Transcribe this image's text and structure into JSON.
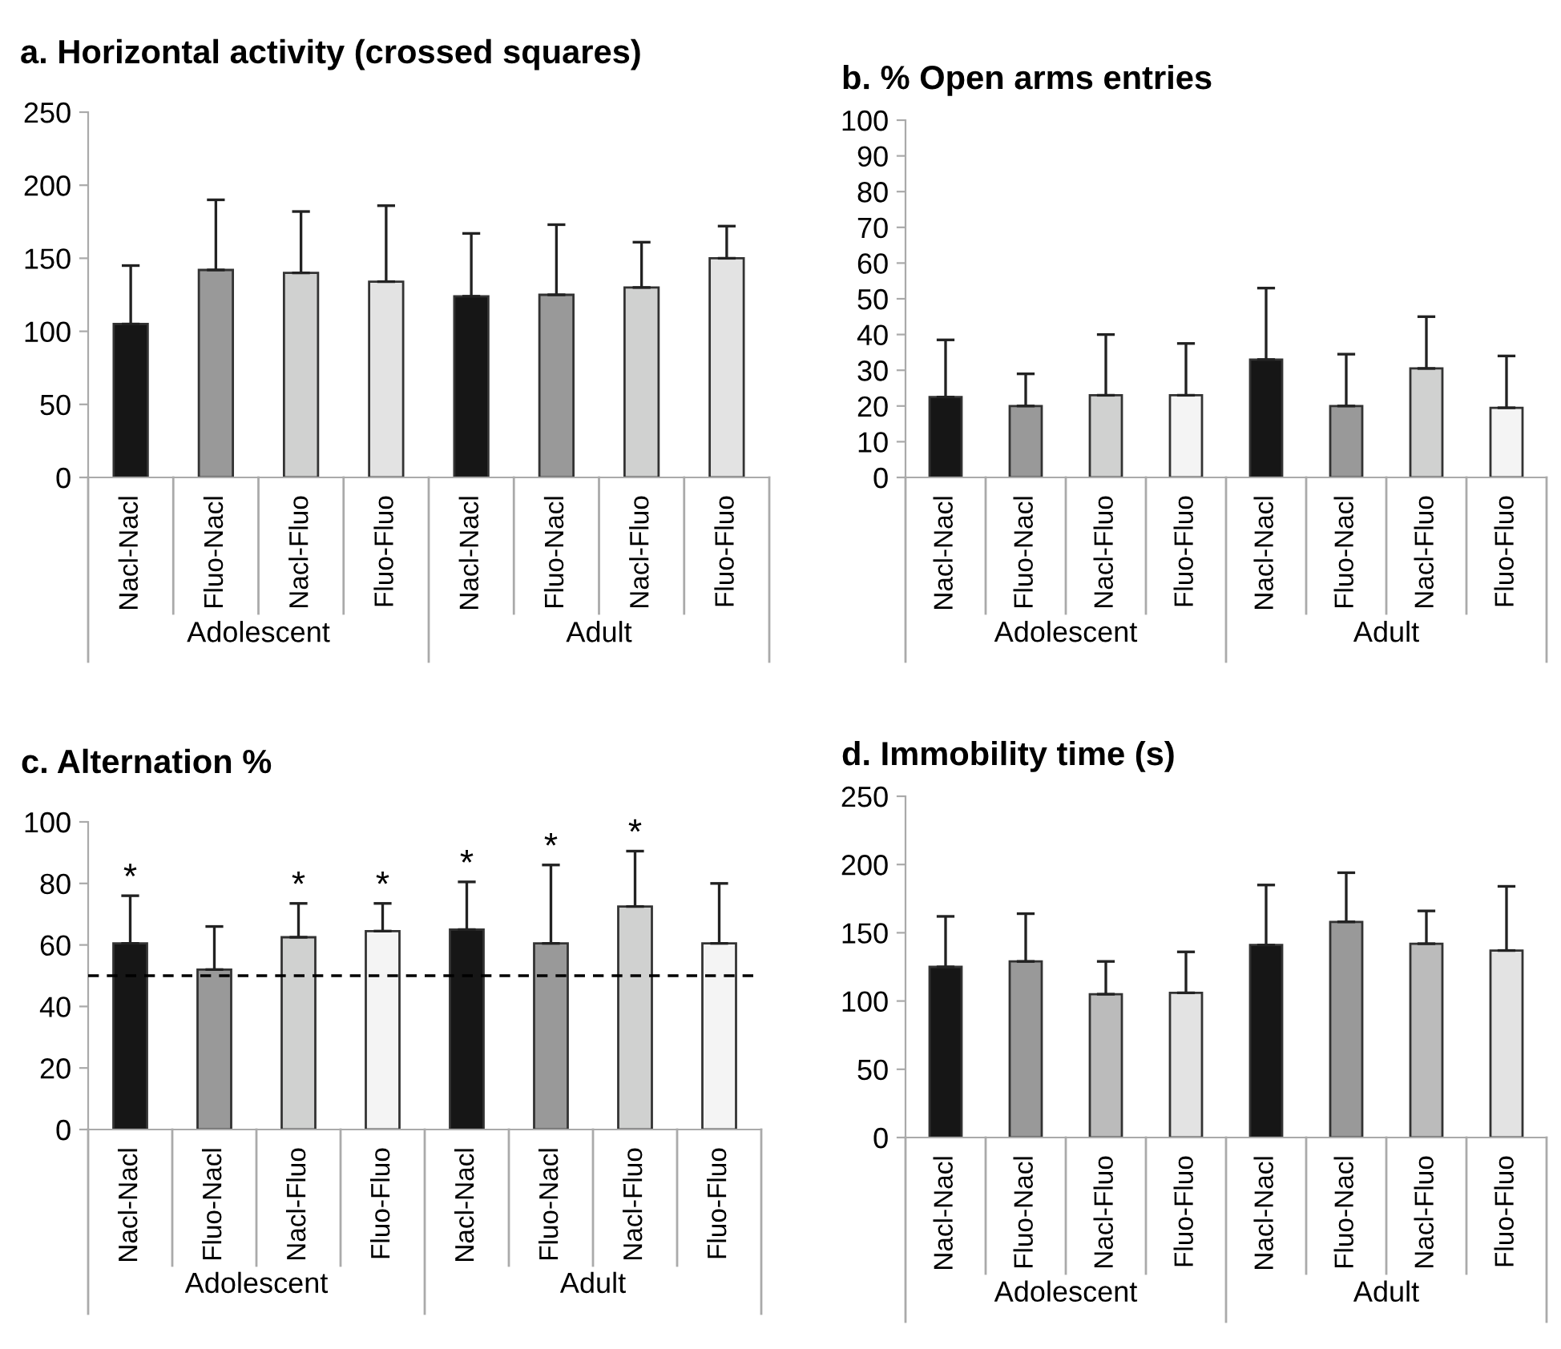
{
  "chart_data": [
    {
      "type": "bar",
      "title": "a. Horizontal activity (crossed squares)",
      "categories": [
        "Nacl-Nacl",
        "Fluo-Nacl",
        "Nacl-Fluo",
        "Fluo-Fluo",
        "Nacl-Nacl",
        "Fluo-Nacl",
        "Nacl-Fluo",
        "Fluo-Fluo"
      ],
      "values": [
        105,
        142,
        140,
        134,
        124,
        125,
        130,
        150
      ],
      "errors": [
        [
          105,
          145
        ],
        [
          142,
          190
        ],
        [
          140,
          182
        ],
        [
          134,
          186
        ],
        [
          124,
          167
        ],
        [
          125,
          173
        ],
        [
          130,
          161
        ],
        [
          150,
          172
        ]
      ],
      "colors": [
        "#161616",
        "#999999",
        "#d0d1d0",
        "#e3e3e3",
        "#161616",
        "#999999",
        "#d0d1d0",
        "#e3e3e3"
      ],
      "ylim": [
        0,
        250
      ],
      "yticks": [
        0,
        50,
        100,
        150,
        200,
        250
      ],
      "grid": false,
      "legend": false,
      "annotations": [
        "Adolescent",
        "Adult"
      ]
    },
    {
      "type": "bar",
      "title": "b. % Open arms entries",
      "categories": [
        "Nacl-Nacl",
        "Fluo-Nacl",
        "Nacl-Fluo",
        "Fluo-Fluo",
        "Nacl-Nacl",
        "Fluo-Nacl",
        "Nacl-Fluo",
        "Fluo-Fluo"
      ],
      "values": [
        22.5,
        20,
        23,
        23,
        33,
        20,
        30.5,
        19.5
      ],
      "errors": [
        [
          22.5,
          38.5
        ],
        [
          20,
          29
        ],
        [
          23,
          40
        ],
        [
          23,
          37.5
        ],
        [
          33,
          53
        ],
        [
          20,
          34.5
        ],
        [
          30.5,
          45
        ],
        [
          19.5,
          34
        ]
      ],
      "colors": [
        "#161616",
        "#999999",
        "#d0d1d0",
        "#f4f4f4",
        "#161616",
        "#999999",
        "#d0d1d0",
        "#f4f4f4"
      ],
      "ylim": [
        0,
        100
      ],
      "yticks": [
        0,
        10,
        20,
        30,
        40,
        50,
        60,
        70,
        80,
        90,
        100
      ],
      "grid": false,
      "legend": false,
      "annotations": [
        "Adolescent",
        "Adult"
      ]
    },
    {
      "type": "bar",
      "title": "c. Alternation %",
      "categories": [
        "Nacl-Nacl",
        "Fluo-Nacl",
        "Nacl-Fluo",
        "Fluo-Fluo",
        "Nacl-Nacl",
        "Fluo-Nacl",
        "Nacl-Fluo",
        "Fluo-Fluo"
      ],
      "values": [
        60.5,
        52,
        62.5,
        64.5,
        65,
        60.5,
        72.5,
        60.5
      ],
      "errors": [
        [
          60.5,
          76
        ],
        [
          52,
          66
        ],
        [
          62.5,
          73.5
        ],
        [
          64.5,
          73.5
        ],
        [
          65,
          80.5
        ],
        [
          60.5,
          86
        ],
        [
          72.5,
          90.5
        ],
        [
          60.5,
          80
        ]
      ],
      "value_labels": [
        "*",
        null,
        "*",
        "*",
        "*",
        "*",
        "*",
        null
      ],
      "colors": [
        "#161616",
        "#999999",
        "#d0d1d0",
        "#f4f4f4",
        "#161616",
        "#999999",
        "#d0d1d0",
        "#f4f4f4"
      ],
      "ylim": [
        0,
        100
      ],
      "yticks": [
        0,
        20,
        40,
        60,
        80,
        100
      ],
      "grid": false,
      "legend": false,
      "ref_lines": [
        {
          "axis": "y",
          "value": 50,
          "label": null,
          "color": "#000000",
          "line_style": "dashed"
        }
      ],
      "annotations": [
        "Adolescent",
        "Adult"
      ]
    },
    {
      "type": "bar",
      "title": "d. Immobility time (s)",
      "categories": [
        "Nacl-Nacl",
        "Fluo-Nacl",
        "Nacl-Fluo",
        "Fluo-Fluo",
        "Nacl-Nacl",
        "Fluo-Nacl",
        "Nacl-Fluo",
        "Fluo-Fluo"
      ],
      "values": [
        125,
        129,
        105,
        106,
        141,
        158,
        142,
        137
      ],
      "errors": [
        [
          125,
          162
        ],
        [
          129,
          164
        ],
        [
          105,
          129
        ],
        [
          106,
          136
        ],
        [
          141,
          185
        ],
        [
          158,
          194
        ],
        [
          142,
          166
        ],
        [
          137,
          184
        ]
      ],
      "colors": [
        "#161616",
        "#999999",
        "#bbbbbb",
        "#e3e3e3",
        "#161616",
        "#999999",
        "#bbbbbb",
        "#e3e3e3"
      ],
      "ylim": [
        0,
        250
      ],
      "yticks": [
        0,
        50,
        100,
        150,
        200,
        250
      ],
      "grid": false,
      "legend": false,
      "annotations": [
        "Adolescent",
        "Adult"
      ]
    }
  ]
}
